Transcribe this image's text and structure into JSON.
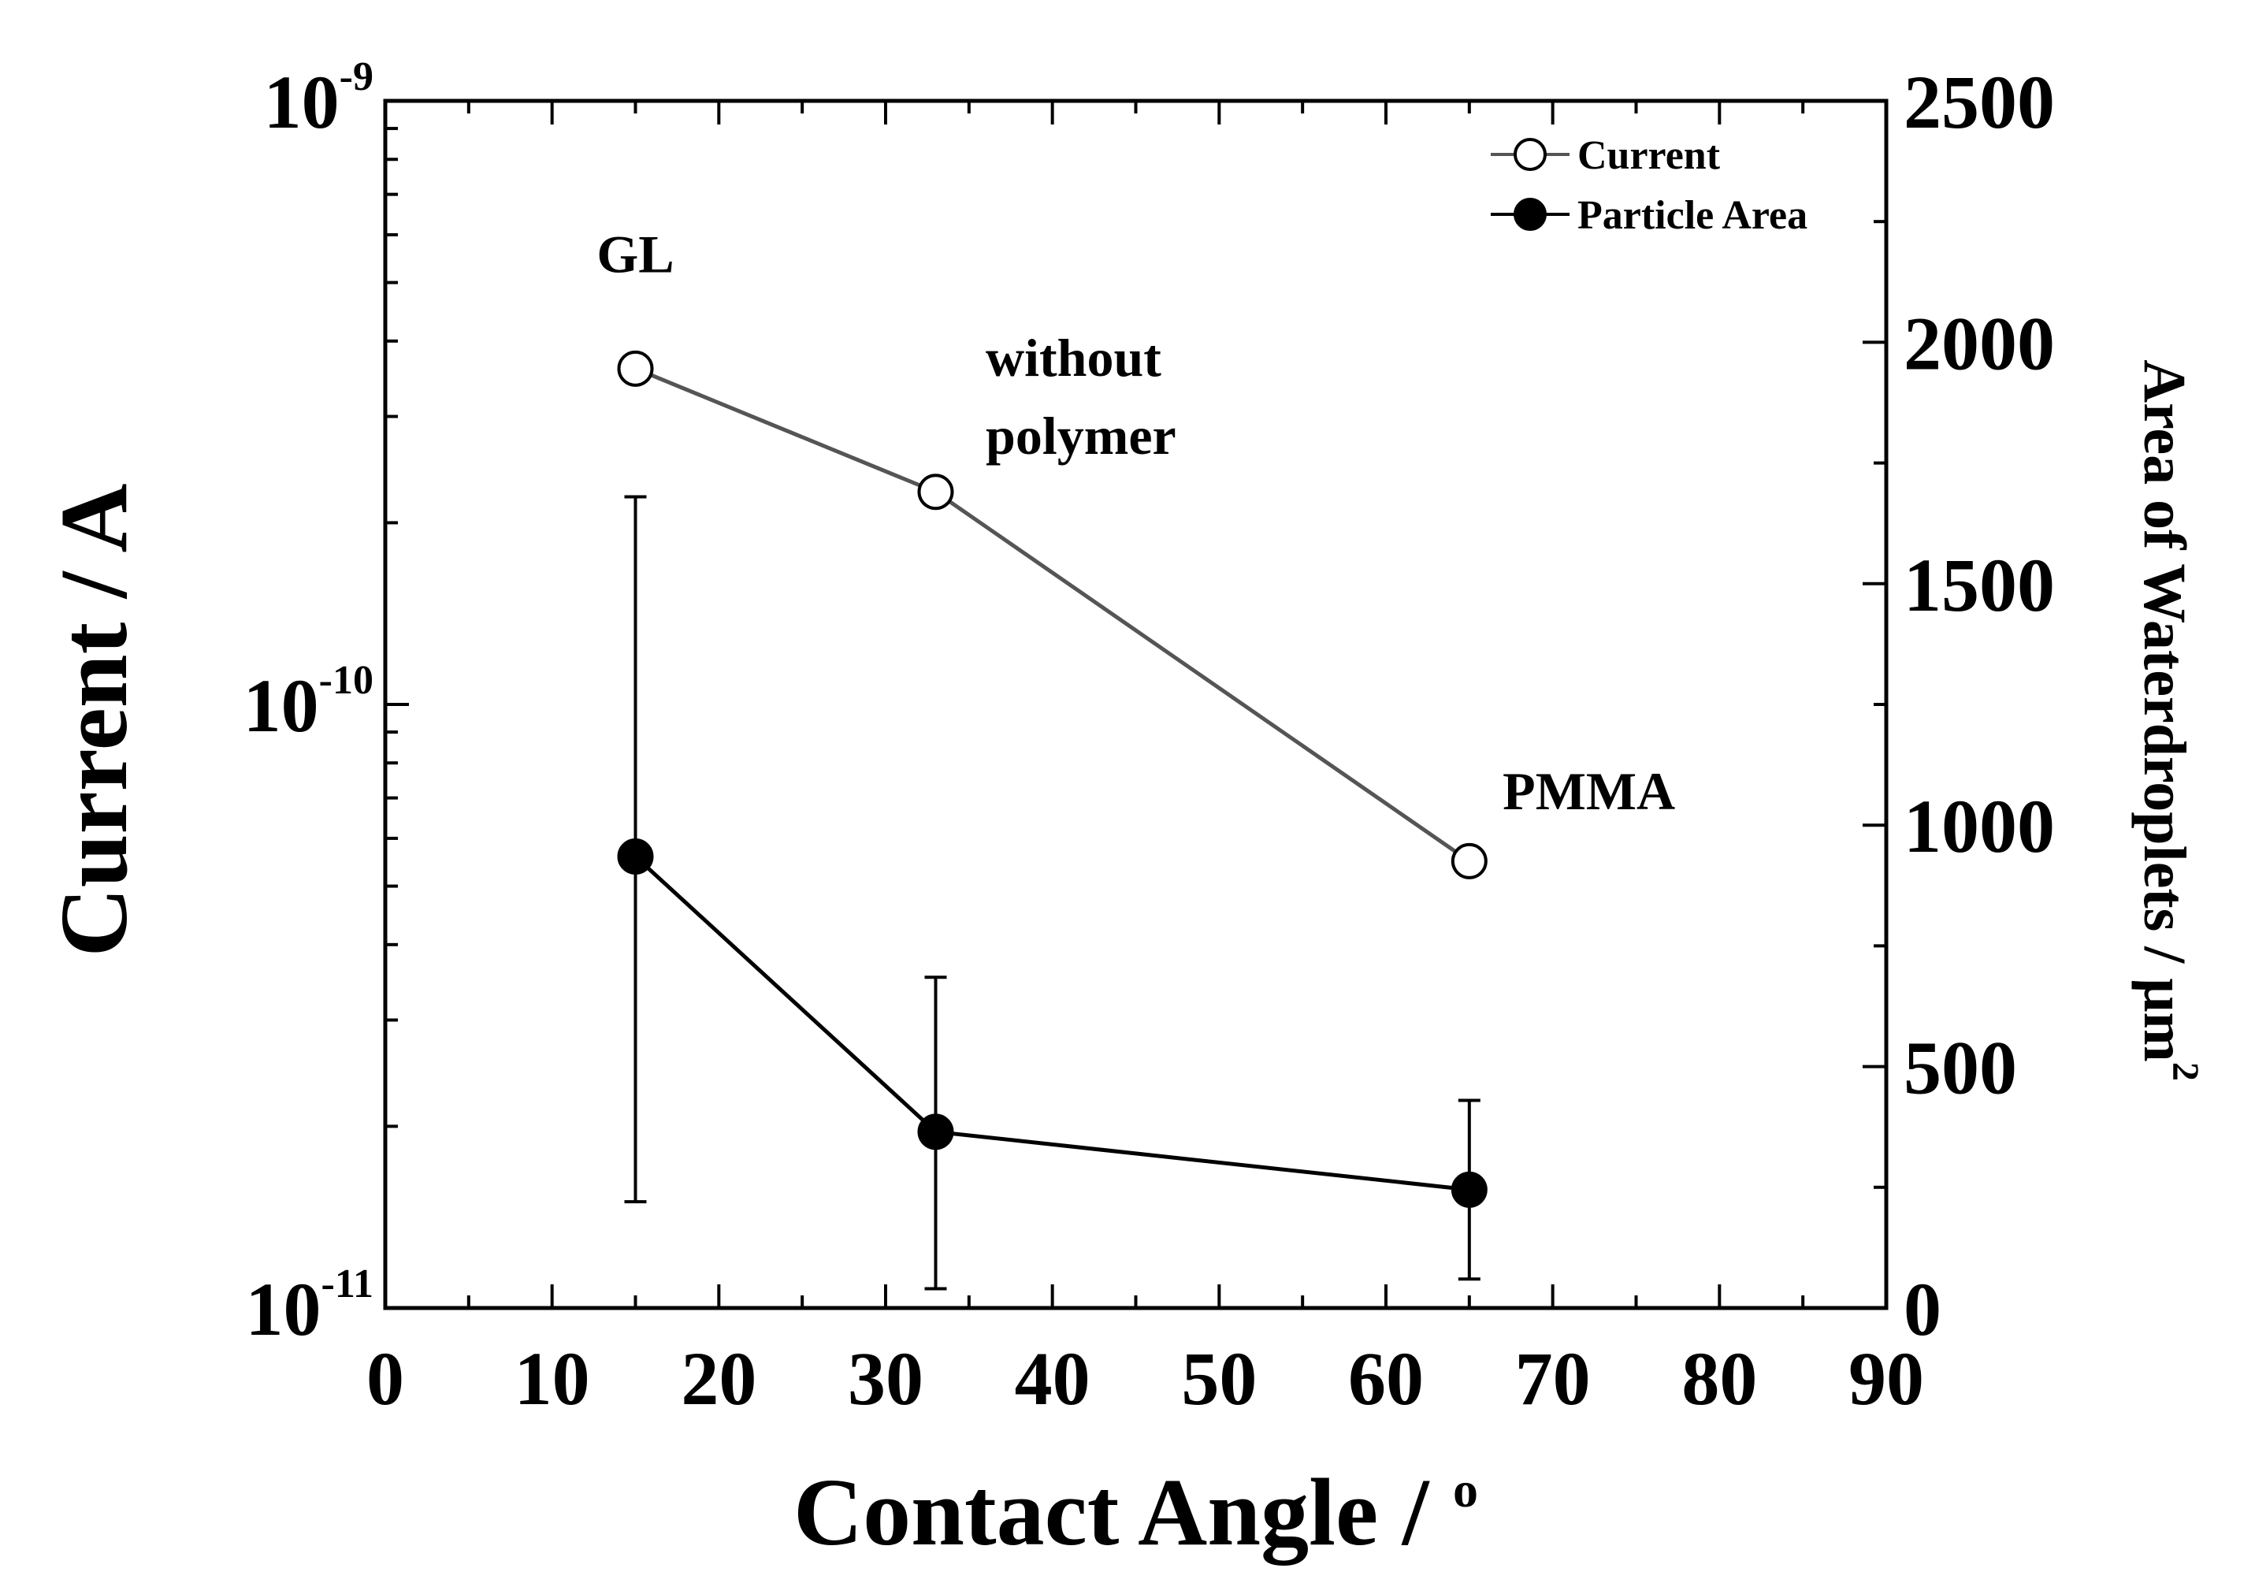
{
  "chart_data": {
    "type": "line",
    "x_axis": {
      "label": "Contact Angle / ",
      "label_sup": "o",
      "range": [
        0,
        90
      ],
      "ticks": [
        "0",
        "10",
        "20",
        "30",
        "40",
        "50",
        "60",
        "70",
        "80",
        "90"
      ]
    },
    "y_axis_left": {
      "label": "Current / A",
      "scale": "log",
      "range": [
        1e-11,
        1e-09
      ],
      "ticks": [
        {
          "value": 1e-11,
          "base": "10",
          "exp": "-11"
        },
        {
          "value": 1e-10,
          "base": "10",
          "exp": "-10"
        },
        {
          "value": 1e-09,
          "base": "10",
          "exp": "-9"
        }
      ]
    },
    "y_axis_right": {
      "label": "Area of Waterdroplets / μm",
      "label_sup": "2",
      "range": [
        0,
        2500
      ],
      "ticks": [
        "0",
        "500",
        "1000",
        "1500",
        "2000",
        "2500"
      ]
    },
    "series": [
      {
        "name": "Current",
        "axis": "left",
        "marker": "open-circle",
        "color": "#555555",
        "x": [
          15,
          33,
          65
        ],
        "y": [
          3.6e-10,
          2.25e-10,
          5.5e-11
        ]
      },
      {
        "name": "Particle Area",
        "axis": "right",
        "marker": "filled-circle",
        "color": "#000000",
        "x": [
          15,
          33,
          65
        ],
        "y": [
          935,
          365,
          245
        ],
        "error": [
          [
            220,
            1680
          ],
          [
            40,
            685
          ],
          [
            60,
            430
          ]
        ]
      }
    ],
    "annotations": [
      {
        "text": "GL",
        "x": 15,
        "y": 5.2e-10
      },
      {
        "text": "without",
        "x": 36,
        "y": 3.5e-10
      },
      {
        "text": "polymer",
        "x": 36,
        "y": 2.6e-10
      },
      {
        "text": "PMMA",
        "x": 67,
        "y": 6.7e-11
      }
    ],
    "legend": {
      "position": "top-right",
      "entries": [
        "Current",
        "Particle Area"
      ]
    }
  }
}
